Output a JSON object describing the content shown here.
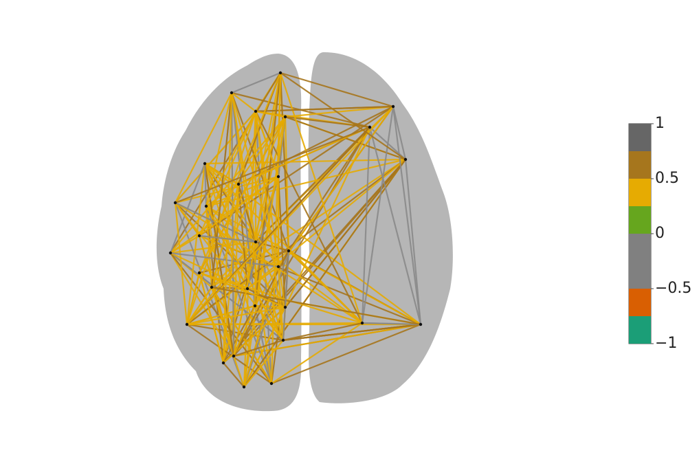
{
  "chart_data": {
    "type": "colorbar",
    "bands": [
      {
        "from": 0.75,
        "to": 1,
        "color": "#666666"
      },
      {
        "from": 0.5,
        "to": 0.75,
        "color": "#a6761d"
      },
      {
        "from": 0.25,
        "to": 0.5,
        "color": "#e6ab02"
      },
      {
        "from": 0,
        "to": 0.25,
        "color": "#66a61e"
      },
      {
        "from": -0.5,
        "to": 0,
        "color": "#808080"
      },
      {
        "from": -0.75,
        "to": -0.5,
        "color": "#d95f02"
      },
      {
        "from": -1,
        "to": -0.75,
        "color": "#1b9e77"
      }
    ],
    "ylim": [
      -1,
      1
    ],
    "yticks": [
      1,
      0.5,
      0,
      {
        "value": -0.5,
        "label": "−0.5"
      },
      {
        "value": -1,
        "label": "−1"
      }
    ]
  }
}
